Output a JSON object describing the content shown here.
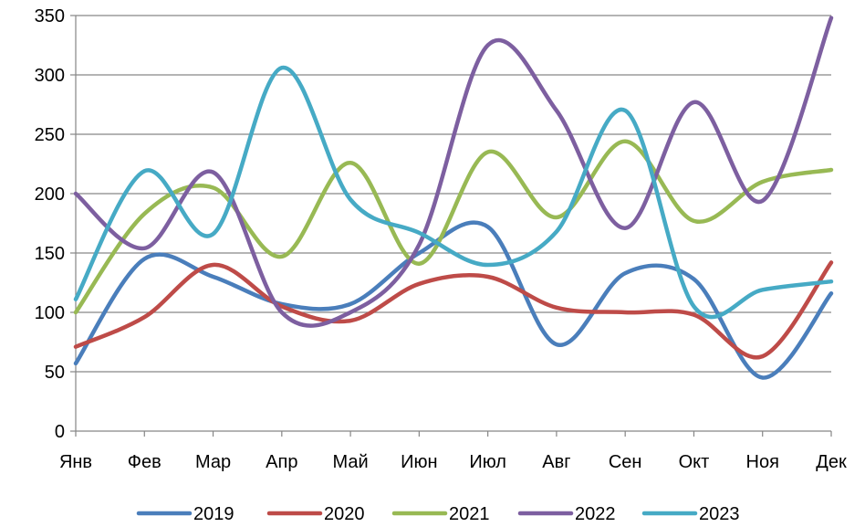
{
  "chart_data": {
    "type": "line",
    "smooth": true,
    "title": "",
    "xlabel": "",
    "ylabel": "",
    "categories": [
      "Янв",
      "Фев",
      "Мар",
      "Апр",
      "Май",
      "Июн",
      "Июл",
      "Авг",
      "Сен",
      "Окт",
      "Ноя",
      "Дек"
    ],
    "ylim": [
      0,
      350
    ],
    "yticks": [
      0,
      50,
      100,
      150,
      200,
      250,
      300,
      350
    ],
    "grid": true,
    "legend_position": "bottom",
    "series": [
      {
        "name": "2019",
        "color": "#4a7ebb",
        "values": [
          57,
          145,
          130,
          107,
          107,
          150,
          172,
          73,
          133,
          128,
          45,
          116
        ]
      },
      {
        "name": "2020",
        "color": "#be4b48",
        "values": [
          71,
          96,
          140,
          105,
          93,
          124,
          130,
          104,
          100,
          98,
          63,
          142
        ]
      },
      {
        "name": "2021",
        "color": "#98b954",
        "values": [
          100,
          183,
          205,
          147,
          226,
          141,
          235,
          180,
          244,
          177,
          210,
          220
        ]
      },
      {
        "name": "2022",
        "color": "#7d5fa0",
        "values": [
          200,
          154,
          218,
          100,
          100,
          157,
          325,
          270,
          171,
          277,
          194,
          348
        ]
      },
      {
        "name": "2023",
        "color": "#46aac5",
        "values": [
          111,
          219,
          166,
          306,
          195,
          167,
          140,
          168,
          270,
          105,
          119,
          126
        ]
      }
    ]
  }
}
